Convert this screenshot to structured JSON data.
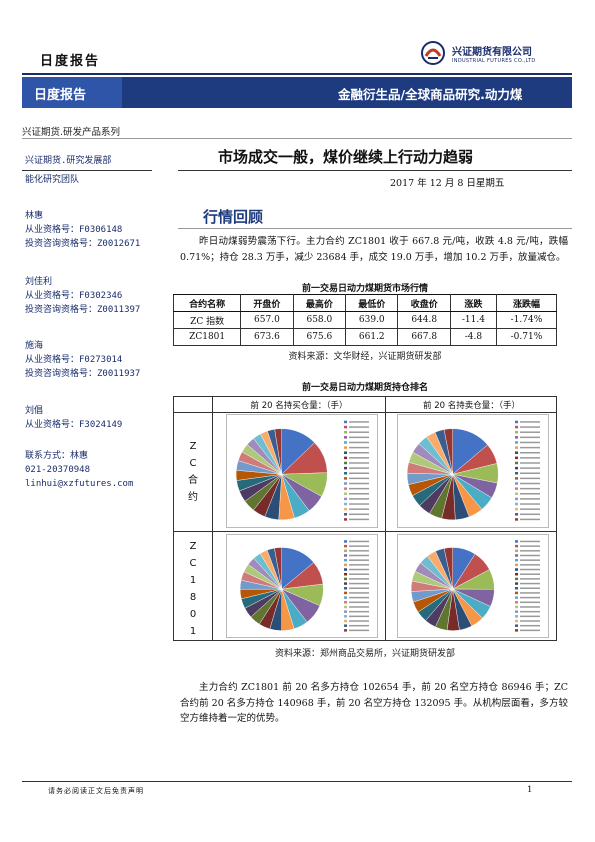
{
  "header": {
    "report_type": "日度报告",
    "logo_cn": "兴证期货有限公司",
    "logo_en": "INDUSTRIAL FUTURES CO.,LTD"
  },
  "banner": {
    "left": "日度报告",
    "right": "金融衍生品/全球商品研究.动力煤"
  },
  "series": "兴证期货.研发产品系列",
  "sidebar": {
    "dept": "兴证期货.研究发展部",
    "team": "能化研究团队",
    "analysts": [
      {
        "name": "林惠",
        "lines": [
          "从业资格号：F0306148",
          "投资咨询资格号：Z0012671"
        ]
      },
      {
        "name": "刘佳利",
        "lines": [
          "从业资格号：F0302346",
          "投资咨询资格号：Z0011397"
        ]
      },
      {
        "name": "施海",
        "lines": [
          "从业资格号：F0273014",
          "投资咨询资格号：Z0011937"
        ]
      },
      {
        "name": "刘倡",
        "lines": [
          "从业资格号：F3024149"
        ]
      }
    ],
    "contact": [
      "联系方式：林惠",
      "021-20370948",
      "linhui@xzfutures.com"
    ]
  },
  "main": {
    "title": "市场成交一般，煤价继续上行动力趋弱",
    "date": "2017 年 12 月 8 日星期五",
    "section_title": "行情回顾",
    "para1": "昨日动煤弱势震荡下行。主力合约 ZC1801 收于 667.8 元/吨，收跌 4.8 元/吨，跌幅 0.71%；持仓 28.3 万手，减少 23684 手，成交 19.0 万手，增加 10.2 万手，放量减仓。",
    "table_caption": "前一交易日动力煤期货市场行情",
    "table_source": "资料来源：文华财经，兴证期货研发部",
    "pie_caption": "前一交易日动力煤期货持仓排名",
    "pie_source": "资料来源：郑州商品交易所，兴证期货研发部",
    "para2": "主力合约 ZC1801 前 20 名多方持仓 102654 手，前 20 名空方持仓 86946 手；ZC 合约前 20 名多方持仓 140968 手，前 20 名空方持仓 132095 手。从机构层面看，多方较空方维持着一定的优势。"
  },
  "table": {
    "headers": [
      "合约名称",
      "开盘价",
      "最高价",
      "最低价",
      "收盘价",
      "涨跌",
      "涨跌幅"
    ],
    "rows": [
      [
        "ZC 指数",
        "657.0",
        "658.0",
        "639.0",
        "644.8",
        "-11.4",
        "-1.74%"
      ],
      [
        "ZC1801",
        "673.6",
        "675.6",
        "661.2",
        "667.8",
        "-4.8",
        "-0.71%"
      ]
    ]
  },
  "pies": {
    "col_headers": [
      "前 20 名持买仓量：（手）",
      "前 20 名持卖仓量：（手）"
    ],
    "row_labels": [
      [
        "Z",
        "C",
        "合",
        "约"
      ],
      [
        "Z",
        "C",
        "1",
        "8",
        "0",
        "1"
      ]
    ],
    "colors": [
      "#4472c4",
      "#c0504d",
      "#9bbb59",
      "#8064a2",
      "#4bacc6",
      "#f79646",
      "#2c4d75",
      "#772c2a",
      "#5f7530",
      "#4d3b62",
      "#276a7c",
      "#b65708",
      "#729aca",
      "#d07b79",
      "#afc97a",
      "#a08bba",
      "#6fbdd1",
      "#f9ab6b",
      "#3a5e8f",
      "#943634"
    ],
    "charts": [
      {
        "values": [
          18200,
          16500,
          12300,
          9400,
          8200,
          7900,
          7100,
          6500,
          6100,
          5800,
          5400,
          5100,
          4900,
          4700,
          4500,
          4300,
          4100,
          3800,
          3700,
          3500
        ]
      },
      {
        "values": [
          17800,
          9400,
          8900,
          7100,
          6900,
          6600,
          6400,
          6200,
          5900,
          5700,
          5500,
          5300,
          5100,
          5000,
          4900,
          4700,
          4600,
          4400,
          4200,
          3900
        ]
      },
      {
        "values": [
          15500,
          10100,
          9400,
          8900,
          6200,
          5400,
          5100,
          4900,
          4700,
          4500,
          4300,
          4100,
          3900,
          3800,
          3600,
          3500,
          3400,
          3300,
          3200,
          3100
        ]
      },
      {
        "values": [
          8500,
          7700,
          7400,
          6400,
          5100,
          4800,
          4700,
          4500,
          4400,
          4200,
          4100,
          4000,
          3900,
          3800,
          3700,
          3600,
          3500,
          3400,
          3300,
          3100
        ]
      }
    ]
  }
}
